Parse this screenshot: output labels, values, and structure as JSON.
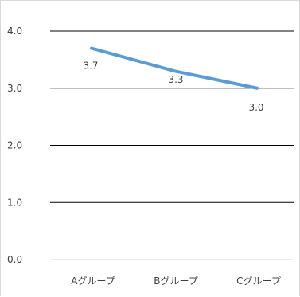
{
  "chart_data": {
    "type": "line",
    "categories": [
      "Aグループ",
      "Bグループ",
      "Cグループ"
    ],
    "series": [
      {
        "values": [
          3.7,
          3.3,
          3.0
        ]
      }
    ],
    "data_labels": [
      "3.7",
      "3.3",
      "3.0"
    ],
    "ylim": [
      0,
      4
    ],
    "yticks": [
      "0.0",
      "1.0",
      "2.0",
      "3.0",
      "4.0"
    ],
    "grid": true,
    "line_color": "#5b9bd5",
    "grid_color": "#000000",
    "text_color": "#404040"
  }
}
